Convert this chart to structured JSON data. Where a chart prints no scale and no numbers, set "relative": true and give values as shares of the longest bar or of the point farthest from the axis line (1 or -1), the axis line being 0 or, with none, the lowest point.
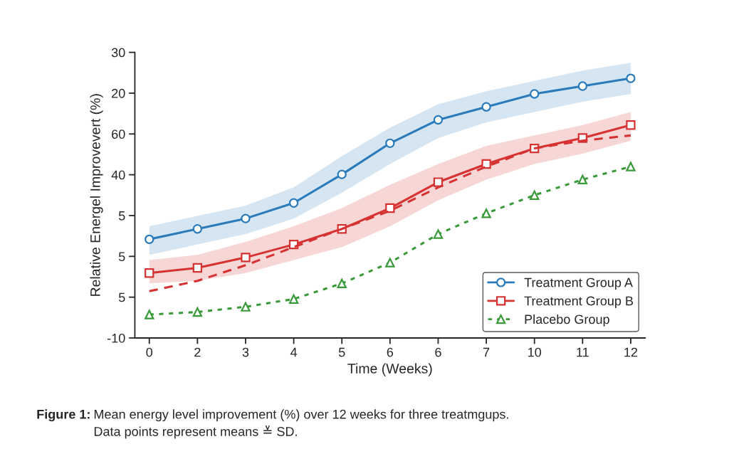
{
  "chart_data": {
    "type": "line",
    "xlabel": "Time (Weeks)",
    "ylabel": "Relative Energel Improvevert (%)",
    "categories": [
      "0",
      "2",
      "3",
      "4",
      "5",
      "6",
      "6",
      "7",
      "10",
      "11",
      "12"
    ],
    "relative": true,
    "y_categories": [
      "30",
      "20",
      "60",
      "40",
      "5",
      "5",
      "5",
      "-10"
    ],
    "series": [
      {
        "name": "Treatment Group A",
        "color": "#2b7bba",
        "marker": "circle",
        "line_style": "solid",
        "values": [
          0.38,
          0.42,
          0.46,
          0.52,
          0.63,
          0.75,
          0.84,
          0.89,
          0.94,
          0.97,
          1.0
        ],
        "lower": [
          0.32,
          0.36,
          0.4,
          0.46,
          0.56,
          0.67,
          0.77,
          0.83,
          0.87,
          0.91,
          0.94
        ],
        "upper": [
          0.43,
          0.47,
          0.51,
          0.58,
          0.7,
          0.81,
          0.9,
          0.95,
          0.99,
          1.03,
          1.06
        ]
      },
      {
        "name": "Treatment Group B",
        "color": "#d63232",
        "marker": "square",
        "line_style": "solid",
        "values": [
          0.25,
          0.27,
          0.31,
          0.36,
          0.42,
          0.5,
          0.6,
          0.67,
          0.73,
          0.77,
          0.82
        ],
        "lower": [
          0.21,
          0.22,
          0.25,
          0.3,
          0.35,
          0.43,
          0.53,
          0.61,
          0.67,
          0.71,
          0.76
        ],
        "upper": [
          0.3,
          0.32,
          0.37,
          0.43,
          0.5,
          0.59,
          0.67,
          0.74,
          0.78,
          0.82,
          0.87
        ]
      },
      {
        "color": "#d63232",
        "marker": "none",
        "line_style": "dashed",
        "values": [
          0.18,
          0.22,
          0.28,
          0.35,
          0.42,
          0.49,
          0.58,
          0.66,
          0.73,
          0.76,
          0.78
        ]
      },
      {
        "name": "Placebo Group",
        "color": "#3a9a3a",
        "marker": "triangle",
        "line_style": "dotted",
        "values": [
          0.09,
          0.1,
          0.12,
          0.15,
          0.21,
          0.29,
          0.4,
          0.48,
          0.55,
          0.61,
          0.66
        ]
      }
    ],
    "legend": "lower right",
    "annotations": [
      "Figure 1:",
      "Mean energy level improvement (%) over 12 weeks for three treatmgups.\nData points represent means ≚ SD."
    ]
  }
}
